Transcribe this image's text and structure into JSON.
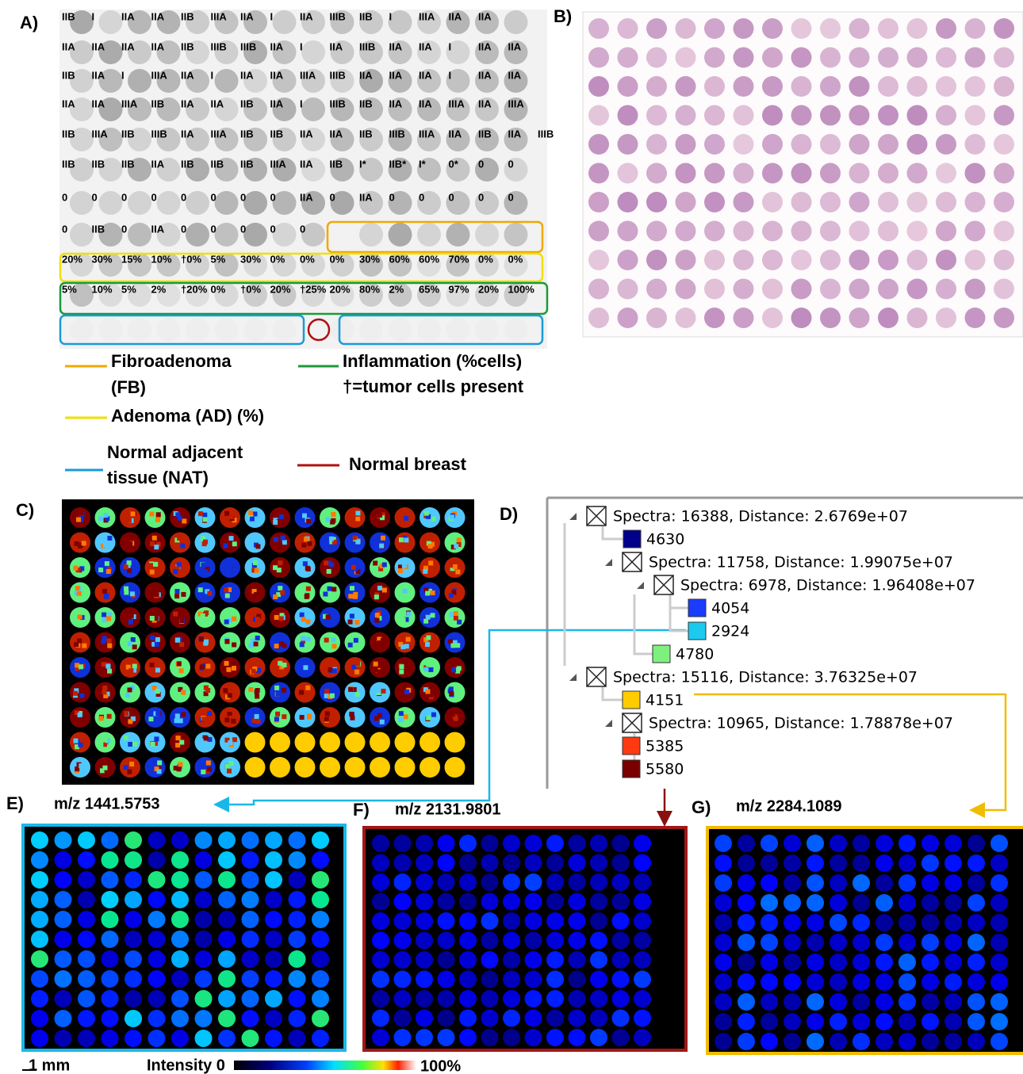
{
  "panel_labels": [
    "A)",
    "B)",
    "C)",
    "D)",
    "E)",
    "F)",
    "G)"
  ],
  "panel_a": {
    "rows": [
      [
        "IIB",
        "I",
        "IIA",
        "IIA",
        "IIB",
        "IIIA",
        "IIA",
        "I",
        "IIA",
        "IIIB",
        "IIB",
        "I",
        "IIIA",
        "IIA",
        "IIA"
      ],
      [
        "IIA",
        "IIA",
        "IIA",
        "IIA",
        "IIB",
        "IIIB",
        "IIIB",
        "IIA",
        "I",
        "IIA",
        "IIIB",
        "IIA",
        "IIA",
        "I",
        "IIA",
        "IIA"
      ],
      [
        "IIB",
        "IIA",
        "I",
        "IIIA",
        "IIA",
        "I",
        "IIA",
        "IIA",
        "IIIA",
        "IIIB",
        "IIA",
        "IIA",
        "IIA",
        "I",
        "IIA",
        "IIA"
      ],
      [
        "IIA",
        "IIA",
        "IIIA",
        "IIB",
        "IIA",
        "IIA",
        "IIB",
        "IIA",
        "I",
        "IIIB",
        "IIB",
        "IIA",
        "IIA",
        "IIIA",
        "IIA",
        "IIIA"
      ],
      [
        "IIB",
        "IIIA",
        "IIB",
        "IIIB",
        "IIA",
        "IIIA",
        "IIB",
        "IIB",
        "IIA",
        "IIA",
        "IIB",
        "IIIB",
        "IIIA",
        "IIA",
        "IIB",
        "IIA",
        "IIIB"
      ],
      [
        "IIB",
        "IIB",
        "IIB",
        "IIA",
        "IIB",
        "IIB",
        "IIB",
        "IIIA",
        "IIA",
        "IIB",
        "I*",
        "IIB*",
        "I*",
        "0*",
        "0",
        "0"
      ],
      [
        "0",
        "0",
        "0",
        "0",
        "0",
        "0",
        "0",
        "0",
        "IIA",
        "0",
        "IIA",
        "0",
        "0",
        "0",
        "0",
        "0"
      ],
      [
        "0",
        "IIB",
        "0",
        "IIA",
        "0",
        "0",
        "0",
        "0",
        "0"
      ],
      [
        "20%",
        "30%",
        "15%",
        "10%",
        "†0%",
        "5%",
        "30%",
        "0%",
        "0%",
        "0%",
        "30%",
        "60%",
        "60%",
        "70%",
        "0%",
        "0%"
      ],
      [
        "5%",
        "10%",
        "5%",
        "2%",
        "†20%",
        "0%",
        "†0%",
        "20%",
        "†25%",
        "20%",
        "80%",
        "2%",
        "65%",
        "97%",
        "20%",
        "100%"
      ]
    ],
    "legend": {
      "fibroadenoma": [
        "Fibroadenoma",
        "(FB)"
      ],
      "inflammation": [
        "Inflammation (%cells)",
        "†=tumor cells present"
      ],
      "adenoma": [
        "Adenoma (AD) (%)"
      ],
      "nat": [
        "Normal adjacent",
        "tissue (NAT)"
      ],
      "normal": [
        "Normal breast"
      ]
    }
  },
  "tree": {
    "nodes": [
      {
        "label": "Spectra: 16388, Distance: 2.6769e+07"
      },
      {
        "label": "4630",
        "color": "#00008b"
      },
      {
        "label": "Spectra: 11758, Distance: 1.99075e+07"
      },
      {
        "label": "Spectra: 6978, Distance: 1.96408e+07"
      },
      {
        "label": "4054",
        "color": "#1a3cff"
      },
      {
        "label": "2924",
        "color": "#1ccaf0"
      },
      {
        "label": "4780",
        "color": "#7ef07e"
      },
      {
        "label": "Spectra: 15116, Distance: 3.76325e+07"
      },
      {
        "label": "4151",
        "color": "#ffcc00"
      },
      {
        "label": "Spectra: 10965, Distance: 1.78878e+07"
      },
      {
        "label": "5385",
        "color": "#ff3a10"
      },
      {
        "label": "5580",
        "color": "#7a0000"
      }
    ]
  },
  "images": {
    "e": "m/z 1441.5753",
    "f": "m/z 2131.9801",
    "g": "m/z 2284.1089"
  },
  "scale": {
    "bar": "1 mm",
    "intensity": "Intensity 0",
    "max": "100%"
  }
}
